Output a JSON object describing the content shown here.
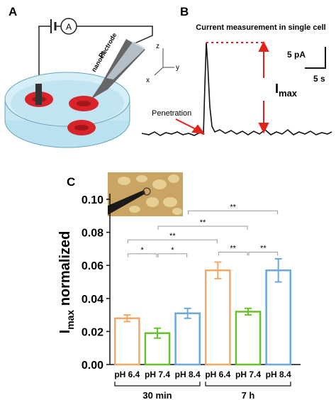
{
  "panel_labels": [
    "A",
    "B",
    "C"
  ],
  "panel_a": {
    "meter": "A",
    "electrode_label_1": "Pt",
    "electrode_label_2": "nanoelectrode",
    "axis_z": "z",
    "axis_y": "y",
    "axis_x": "x"
  },
  "panel_b": {
    "title": "Current measurement in single cell",
    "scale_current": "5 pA",
    "scale_time": "5 s",
    "peak_main": "I",
    "peak_sub": "max",
    "event": "Penetration"
  },
  "chart_data": {
    "type": "bar",
    "ylabel": {
      "main": "I",
      "sub": "max",
      "rest": " normalized"
    },
    "categories": [
      "pH 6.4",
      "pH 7.4",
      "pH 8.4",
      "pH 6.4",
      "pH 7.4",
      "pH 8.4"
    ],
    "groups": [
      "30 min",
      "7 h"
    ],
    "values": [
      0.028,
      0.019,
      0.031,
      0.057,
      0.032,
      0.057
    ],
    "errors": [
      0.002,
      0.003,
      0.003,
      0.005,
      0.002,
      0.007
    ],
    "colors": [
      "#f5a866",
      "#66c22a",
      "#6aa8de",
      "#f5a866",
      "#66c22a",
      "#6aa8de"
    ],
    "ylim": [
      0,
      0.1
    ],
    "yticks": [
      {
        "value": 0,
        "label": "0.00"
      },
      {
        "value": 0.02,
        "label": "0.02"
      },
      {
        "value": 0.04,
        "label": "0.04"
      },
      {
        "value": 0.06,
        "label": "0.06"
      },
      {
        "value": 0.08,
        "label": "0.08"
      },
      {
        "value": 0.1,
        "label": "0.10"
      }
    ],
    "significance": [
      {
        "from": 0,
        "to": 1,
        "y": 0.067,
        "label": "*"
      },
      {
        "from": 1,
        "to": 2,
        "y": 0.067,
        "label": "*"
      },
      {
        "from": 0,
        "to": 3,
        "y": 0.0755,
        "label": "**"
      },
      {
        "from": 1,
        "to": 4,
        "y": 0.0837,
        "label": "**"
      },
      {
        "from": 2,
        "to": 5,
        "y": 0.093,
        "label": "**"
      },
      {
        "from": 3,
        "to": 4,
        "y": 0.068,
        "label": "**"
      },
      {
        "from": 4,
        "to": 5,
        "y": 0.068,
        "label": "**"
      }
    ]
  }
}
